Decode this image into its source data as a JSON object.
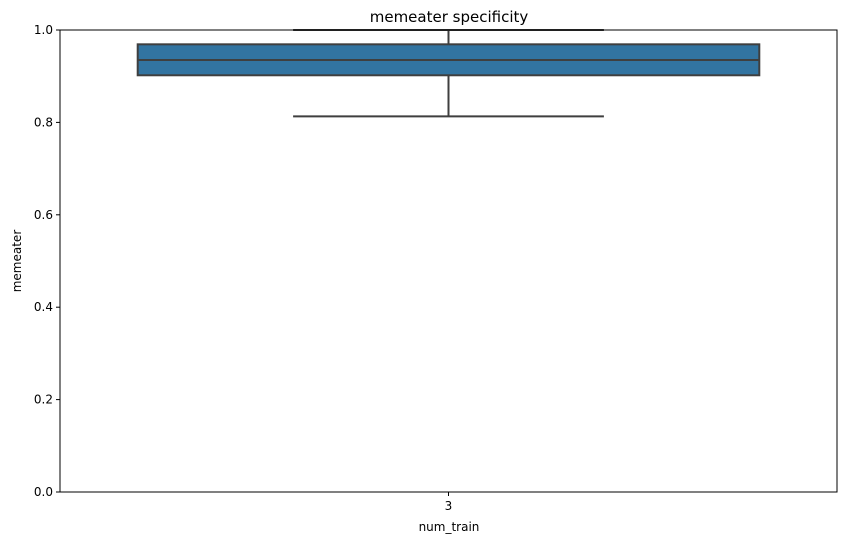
{
  "chart_data": {
    "type": "box",
    "title": "memeater specificity",
    "xlabel": "num_train",
    "ylabel": "memeater",
    "categories": [
      "3"
    ],
    "boxes": [
      {
        "category": "3",
        "whisker_low": 0.813,
        "q1": 0.902,
        "median": 0.935,
        "q3": 0.969,
        "whisker_high": 1.0
      }
    ],
    "ylim": [
      0.0,
      1.0
    ],
    "yticks": [
      "0.0",
      "0.2",
      "0.4",
      "0.6",
      "0.8",
      "1.0"
    ],
    "grid": false,
    "colors": {
      "box_fill": "#3274a1",
      "line": "#3f3f3f"
    }
  }
}
